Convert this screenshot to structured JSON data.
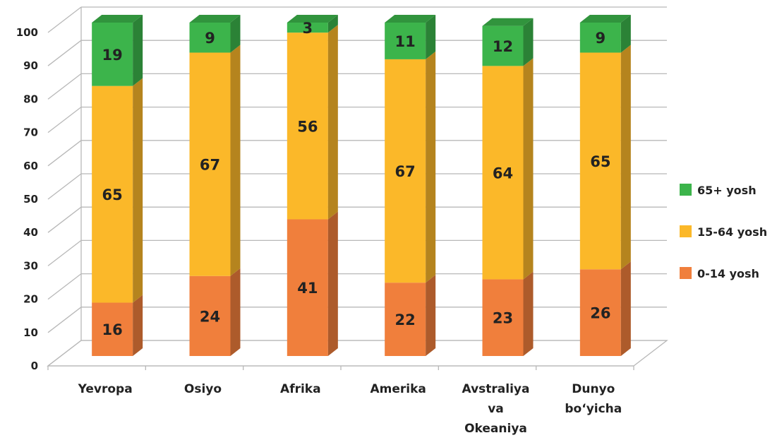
{
  "chart_data": {
    "type": "bar",
    "stacked": true,
    "three_d": true,
    "categories": [
      "Yevropa",
      "Osiyo",
      "Afrika",
      "Amerika",
      "Avstraliya va Okeaniya",
      "Dunyo bo‘yicha"
    ],
    "category_lines": [
      [
        "Yevropa"
      ],
      [
        "Osiyo"
      ],
      [
        "Afrika"
      ],
      [
        "Amerika"
      ],
      [
        "Avstraliya",
        "va",
        "Okeaniya"
      ],
      [
        "Dunyo",
        "bo‘yicha"
      ]
    ],
    "series": [
      {
        "name": "0-14 yosh",
        "values": [
          16,
          24,
          41,
          22,
          23,
          26
        ],
        "color": "#f07f3c"
      },
      {
        "name": "15-64 yosh",
        "values": [
          65,
          67,
          56,
          67,
          64,
          65
        ],
        "color": "#fbb829"
      },
      {
        "name": "65+ yosh",
        "values": [
          19,
          9,
          3,
          11,
          12,
          9
        ],
        "color": "#3cb44b"
      }
    ],
    "ylim": [
      0,
      100
    ],
    "yticks": [
      0,
      10,
      20,
      30,
      40,
      50,
      60,
      70,
      80,
      90,
      100
    ],
    "grid": true,
    "legend_position": "right",
    "title": "",
    "xlabel": "",
    "ylabel": ""
  }
}
